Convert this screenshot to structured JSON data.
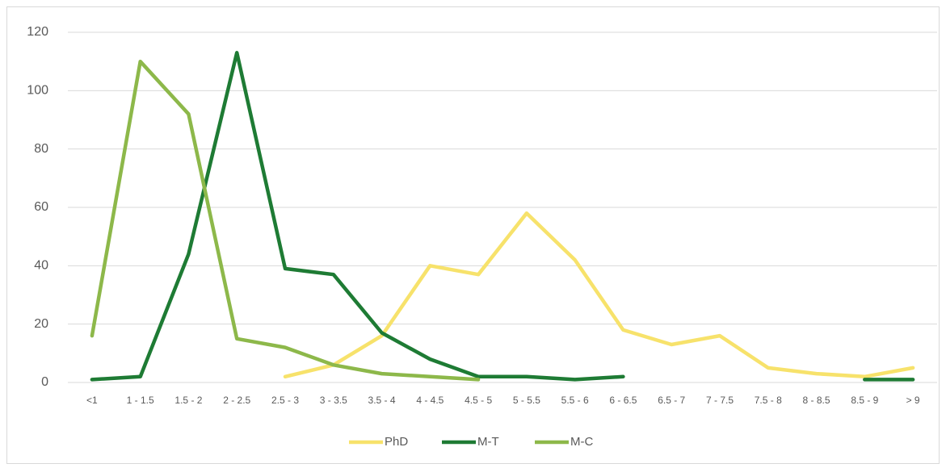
{
  "chart_data": {
    "type": "line",
    "categories": [
      "<1",
      "1 - 1.5",
      "1.5 - 2",
      "2 - 2.5",
      "2.5 - 3",
      "3 - 3.5",
      "3.5 - 4",
      "4 - 4.5",
      "4.5 - 5",
      "5 - 5.5",
      "5.5 - 6",
      "6 - 6.5",
      "6.5 - 7",
      "7 - 7.5",
      "7.5 - 8",
      "8 - 8.5",
      "8.5 - 9",
      "> 9"
    ],
    "series": [
      {
        "name": "PhD",
        "color": "#f7e26b",
        "values": [
          null,
          null,
          null,
          null,
          2,
          6,
          16,
          40,
          37,
          58,
          42,
          18,
          13,
          16,
          5,
          3,
          2,
          5
        ]
      },
      {
        "name": "M-T",
        "color": "#1e7b34",
        "values": [
          1,
          2,
          44,
          113,
          39,
          37,
          17,
          8,
          2,
          2,
          1,
          2,
          null,
          null,
          null,
          null,
          1,
          1
        ]
      },
      {
        "name": "M-C",
        "color": "#8db84a",
        "values": [
          16,
          110,
          92,
          15,
          12,
          6,
          3,
          2,
          1,
          null,
          null,
          null,
          null,
          null,
          null,
          null,
          null,
          null
        ]
      }
    ],
    "ylim": [
      0,
      120
    ],
    "yticks": [
      0,
      20,
      40,
      60,
      80,
      100,
      120
    ],
    "grid": true,
    "legend": "bottom"
  }
}
